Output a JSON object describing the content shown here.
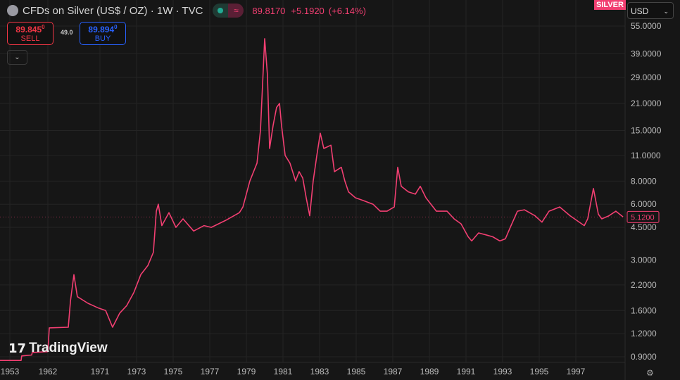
{
  "header": {
    "title": "CFDs on Silver (US$ / OZ) · 1W · TVC",
    "status_icon": "market-open-dot",
    "delay_icon": "approx-icon",
    "last": "89.8170",
    "change": "+5.1920",
    "change_pct": "(+6.14%)"
  },
  "trade": {
    "sell_price": "89.845",
    "sell_sup": "0",
    "sell_label": "SELL",
    "spread": "49.0",
    "buy_price": "89.894",
    "buy_sup": "0",
    "buy_label": "BUY"
  },
  "symbol_badge": "SILVER",
  "currency": "USD",
  "watermark": "TradingView",
  "colors": {
    "line": "#f23f72",
    "background": "#161616",
    "grid": "#242424"
  },
  "chart_data": {
    "type": "line",
    "title": "CFDs on Silver (US$ / OZ) · 1W · TVC",
    "xlabel": "",
    "ylabel": "",
    "yscale": "log",
    "ylim": [
      0.85,
      58
    ],
    "y_ticks": [
      "55.0000",
      "39.0000",
      "29.0000",
      "21.0000",
      "15.0000",
      "11.0000",
      "8.0000",
      "6.0000",
      "4.5000",
      "3.0000",
      "2.2000",
      "1.6000",
      "1.2000",
      "0.9000"
    ],
    "x_ticks": [
      "1953",
      "1962",
      "1971",
      "1973",
      "1975",
      "1977",
      "1979",
      "1981",
      "1983",
      "1985",
      "1987",
      "1989",
      "1991",
      "1993",
      "1995",
      "1997"
    ],
    "last_value_label": "5.1200",
    "series": [
      {
        "name": "Silver",
        "points": [
          [
            1950.67,
            0.86
          ],
          [
            1955.67,
            0.86
          ],
          [
            1955.8,
            0.91
          ],
          [
            1958.17,
            0.92
          ],
          [
            1958.3,
            0.95
          ],
          [
            1962,
            0.96
          ],
          [
            1962.24,
            1.29
          ],
          [
            1965.53,
            1.3
          ],
          [
            1965.9,
            1.8
          ],
          [
            1966.5,
            2.5
          ],
          [
            1967.1,
            1.9
          ],
          [
            1968.93,
            1.75
          ],
          [
            1970.76,
            1.65
          ],
          [
            1971.31,
            1.6
          ],
          [
            1971.69,
            1.3
          ],
          [
            1972.08,
            1.55
          ],
          [
            1972.46,
            1.7
          ],
          [
            1972.85,
            2.0
          ],
          [
            1973.23,
            2.5
          ],
          [
            1973.62,
            2.8
          ],
          [
            1973.92,
            3.3
          ],
          [
            1974.08,
            5.5
          ],
          [
            1974.19,
            6.0
          ],
          [
            1974.38,
            4.6
          ],
          [
            1974.77,
            5.4
          ],
          [
            1975.15,
            4.5
          ],
          [
            1975.54,
            5.0
          ],
          [
            1976.12,
            4.3
          ],
          [
            1976.69,
            4.6
          ],
          [
            1977.08,
            4.5
          ],
          [
            1977.85,
            4.9
          ],
          [
            1978.62,
            5.4
          ],
          [
            1978.81,
            5.8
          ],
          [
            1979.19,
            8
          ],
          [
            1979.58,
            10
          ],
          [
            1979.77,
            15
          ],
          [
            1980.0,
            47
          ],
          [
            1980.15,
            30
          ],
          [
            1980.27,
            12
          ],
          [
            1980.46,
            16
          ],
          [
            1980.65,
            20
          ],
          [
            1980.81,
            21
          ],
          [
            1980.92,
            16
          ],
          [
            1981.12,
            11
          ],
          [
            1981.38,
            10
          ],
          [
            1981.69,
            8
          ],
          [
            1981.88,
            9
          ],
          [
            1982.08,
            8.3
          ],
          [
            1982.27,
            6.5
          ],
          [
            1982.46,
            5.2
          ],
          [
            1982.65,
            8
          ],
          [
            1982.85,
            11
          ],
          [
            1983.04,
            14.5
          ],
          [
            1983.23,
            12
          ],
          [
            1983.62,
            12.5
          ],
          [
            1983.81,
            9
          ],
          [
            1984.19,
            9.5
          ],
          [
            1984.38,
            8
          ],
          [
            1984.58,
            7
          ],
          [
            1984.96,
            6.5
          ],
          [
            1985.35,
            6.3
          ],
          [
            1985.92,
            6
          ],
          [
            1986.31,
            5.5
          ],
          [
            1986.69,
            5.5
          ],
          [
            1987.08,
            5.8
          ],
          [
            1987.27,
            9.5
          ],
          [
            1987.46,
            7.5
          ],
          [
            1987.85,
            7
          ],
          [
            1988.23,
            6.8
          ],
          [
            1988.5,
            7.5
          ],
          [
            1988.81,
            6.5
          ],
          [
            1989.38,
            5.5
          ],
          [
            1989.96,
            5.5
          ],
          [
            1990.35,
            5
          ],
          [
            1990.73,
            4.7
          ],
          [
            1991.12,
            4
          ],
          [
            1991.31,
            3.8
          ],
          [
            1991.69,
            4.2
          ],
          [
            1992.08,
            4.1
          ],
          [
            1992.46,
            4
          ],
          [
            1992.85,
            3.8
          ],
          [
            1993.15,
            3.9
          ],
          [
            1993.42,
            4.5
          ],
          [
            1993.81,
            5.5
          ],
          [
            1994.19,
            5.6
          ],
          [
            1994.77,
            5.2
          ],
          [
            1995.15,
            4.8
          ],
          [
            1995.54,
            5.5
          ],
          [
            1996.12,
            5.8
          ],
          [
            1996.69,
            5.2
          ],
          [
            1997.46,
            4.6
          ],
          [
            1997.65,
            5
          ],
          [
            1997.96,
            7.3
          ],
          [
            1998.23,
            5.3
          ],
          [
            1998.42,
            5
          ],
          [
            1998.81,
            5.2
          ],
          [
            1999.19,
            5.5
          ],
          [
            1999.58,
            5.12
          ]
        ]
      }
    ]
  }
}
